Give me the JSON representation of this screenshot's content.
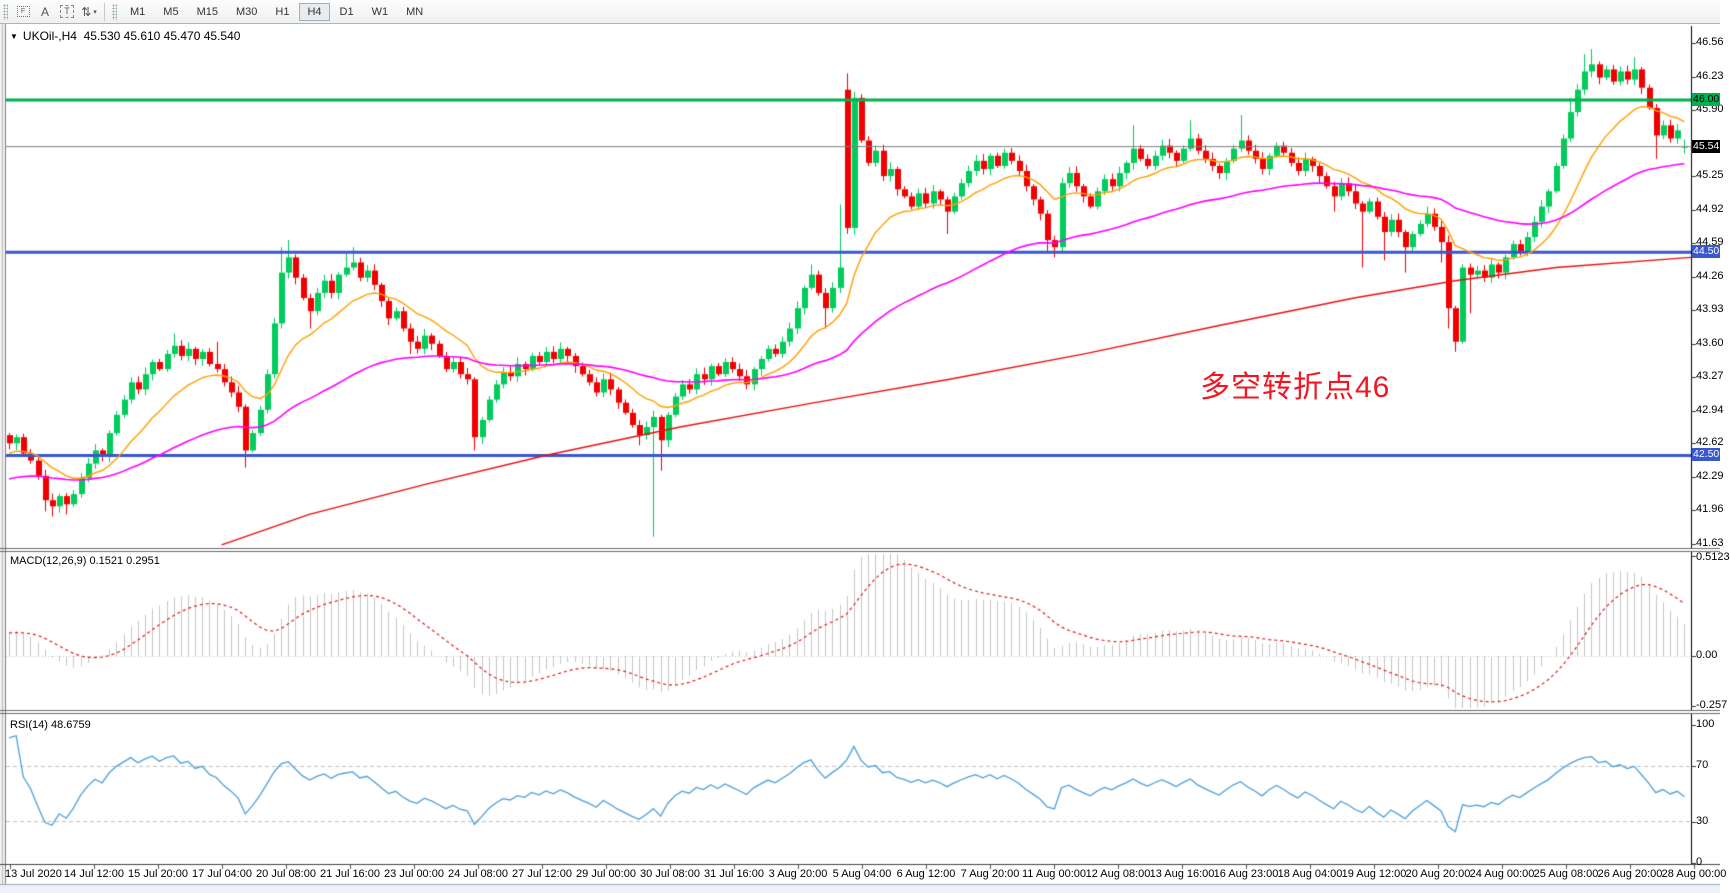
{
  "toolbar": {
    "icons": [
      {
        "name": "chart-foreground-icon",
        "glyph": "F",
        "style": "dotted"
      },
      {
        "name": "text-letter-icon",
        "glyph": "A",
        "style": "plain"
      },
      {
        "name": "text-label-icon",
        "glyph": "T",
        "style": "dashed"
      },
      {
        "name": "objects-arrange-icon",
        "glyph": "⇅",
        "style": "caret"
      }
    ],
    "timeframes": [
      {
        "label": "M1",
        "active": false
      },
      {
        "label": "M5",
        "active": false
      },
      {
        "label": "M15",
        "active": false
      },
      {
        "label": "M30",
        "active": false
      },
      {
        "label": "H1",
        "active": false
      },
      {
        "label": "H4",
        "active": true
      },
      {
        "label": "D1",
        "active": false
      },
      {
        "label": "W1",
        "active": false
      },
      {
        "label": "MN",
        "active": false
      }
    ]
  },
  "chart": {
    "symbol": "UKOil-,H4",
    "ohlc": "45.530 45.610 45.470 45.540",
    "dropdown_glyph": "▼",
    "annotation": {
      "text": "多空转折点46",
      "color": "#f01722"
    },
    "price_axis": {
      "labels": [
        46.56,
        46.23,
        45.9,
        45.25,
        44.92,
        44.59,
        44.26,
        43.93,
        43.6,
        43.27,
        42.94,
        42.62,
        42.29,
        41.96,
        41.63
      ]
    },
    "badges": [
      {
        "text": "46.00",
        "price": 46.0,
        "bg": "#00b050",
        "fg": "#000000"
      },
      {
        "text": "45.54",
        "price": 45.54,
        "bg": "#000000",
        "fg": "#ffffff"
      },
      {
        "text": "44.50",
        "price": 44.5,
        "bg": "#3a57ce",
        "fg": "#ffffff"
      },
      {
        "text": "42.50",
        "price": 42.5,
        "bg": "#3a57ce",
        "fg": "#ffffff"
      }
    ],
    "hlines": [
      {
        "price": 46.0,
        "color": "#00b050",
        "width": 3
      },
      {
        "price": 45.54,
        "color": "#808080",
        "width": 1
      },
      {
        "price": 44.5,
        "color": "#3a57ce",
        "width": 3
      },
      {
        "price": 42.5,
        "color": "#3a57ce",
        "width": 3
      }
    ],
    "candles": {
      "up_color": "#00cc5c",
      "down_color": "#f20000",
      "closes": [
        42.62,
        42.68,
        42.52,
        42.45,
        42.3,
        42.06,
        42.0,
        42.1,
        42.02,
        42.12,
        42.28,
        42.42,
        42.55,
        42.5,
        42.72,
        42.9,
        43.05,
        43.22,
        43.15,
        43.3,
        43.42,
        43.35,
        43.5,
        43.58,
        43.48,
        43.55,
        43.45,
        43.52,
        43.4,
        43.35,
        43.22,
        43.12,
        42.98,
        42.55,
        42.72,
        42.95,
        43.3,
        43.8,
        44.3,
        44.45,
        44.25,
        44.05,
        43.92,
        44.1,
        44.22,
        44.1,
        44.28,
        44.35,
        44.4,
        44.25,
        44.32,
        44.18,
        44.02,
        43.85,
        43.92,
        43.75,
        43.62,
        43.55,
        43.68,
        43.6,
        43.48,
        43.35,
        43.42,
        43.3,
        43.25,
        42.68,
        42.85,
        43.05,
        43.2,
        43.32,
        43.28,
        43.4,
        43.35,
        43.48,
        43.42,
        43.52,
        43.45,
        43.55,
        43.48,
        43.38,
        43.3,
        43.22,
        43.12,
        43.25,
        43.15,
        43.02,
        42.92,
        42.8,
        42.7,
        42.78,
        42.88,
        42.65,
        42.9,
        43.08,
        43.2,
        43.15,
        43.3,
        43.25,
        43.38,
        43.3,
        43.42,
        43.35,
        43.28,
        43.2,
        43.35,
        43.45,
        43.55,
        43.5,
        43.62,
        43.75,
        43.95,
        44.15,
        44.28,
        44.1,
        43.95,
        44.15,
        44.35,
        44.74,
        46.02,
        45.6,
        45.38,
        45.5,
        45.25,
        45.32,
        45.12,
        45.05,
        44.95,
        45.08,
        44.98,
        45.1,
        45.02,
        44.9,
        45.05,
        45.18,
        45.3,
        45.4,
        45.32,
        45.45,
        45.35,
        45.48,
        45.4,
        45.3,
        45.15,
        45.02,
        44.88,
        44.62,
        44.55,
        45.18,
        45.28,
        45.15,
        45.05,
        44.95,
        45.1,
        45.22,
        45.15,
        45.28,
        45.38,
        45.52,
        45.42,
        45.35,
        45.45,
        45.55,
        45.48,
        45.4,
        45.52,
        45.62,
        45.5,
        45.42,
        45.35,
        45.28,
        45.4,
        45.52,
        45.6,
        45.5,
        45.42,
        45.32,
        45.45,
        45.55,
        45.48,
        45.38,
        45.3,
        45.42,
        45.35,
        45.25,
        45.15,
        45.05,
        45.18,
        45.1,
        44.98,
        44.9,
        45.0,
        44.85,
        44.7,
        44.82,
        44.7,
        44.55,
        44.68,
        44.78,
        44.88,
        44.75,
        44.6,
        43.95,
        43.62,
        44.35,
        44.28,
        44.32,
        44.25,
        44.38,
        44.3,
        44.45,
        44.58,
        44.5,
        44.65,
        44.8,
        44.95,
        45.1,
        45.35,
        45.62,
        45.88,
        46.1,
        46.28,
        46.35,
        46.22,
        46.3,
        46.18,
        46.28,
        46.2,
        46.3,
        46.12,
        45.92,
        45.65,
        45.75,
        45.62,
        45.7,
        45.54
      ],
      "open_overrides": {
        "117": 46.1,
        "234": 45.53
      },
      "wick_high_overrides": {
        "23": 43.7,
        "29": 43.62,
        "38": 44.55,
        "39": 44.62,
        "47": 44.5,
        "48": 44.55,
        "112": 44.38,
        "116": 44.97,
        "117": 46.26,
        "118": 46.08,
        "157": 45.75,
        "165": 45.8,
        "172": 45.85,
        "198": 44.95,
        "218": 46.02,
        "220": 46.45,
        "221": 46.5,
        "227": 46.42,
        "234": 45.61
      },
      "wick_low_overrides": {
        "5": 41.95,
        "6": 41.9,
        "8": 41.92,
        "33": 42.38,
        "42": 43.75,
        "56": 43.5,
        "65": 42.55,
        "88": 42.6,
        "90": 41.7,
        "91": 42.35,
        "114": 43.75,
        "131": 44.68,
        "145": 44.5,
        "146": 44.45,
        "185": 44.9,
        "189": 44.35,
        "192": 44.42,
        "195": 44.3,
        "200": 44.4,
        "201": 43.75,
        "202": 43.52,
        "204": 43.9,
        "230": 45.42,
        "234": 45.47
      }
    },
    "moving_averages": {
      "fast": {
        "period": 14,
        "color": "#ffa000"
      },
      "mid": {
        "period": 55,
        "color": "#ff00ff"
      },
      "slow": {
        "color": "#e81010",
        "anchors": [
          [
            0.128,
            41.62
          ],
          [
            0.18,
            41.92
          ],
          [
            0.25,
            42.22
          ],
          [
            0.32,
            42.5
          ],
          [
            0.4,
            42.78
          ],
          [
            0.48,
            43.02
          ],
          [
            0.56,
            43.25
          ],
          [
            0.64,
            43.5
          ],
          [
            0.72,
            43.78
          ],
          [
            0.8,
            44.05
          ],
          [
            0.86,
            44.22
          ],
          [
            0.92,
            44.35
          ],
          [
            1.0,
            44.45
          ]
        ]
      }
    }
  },
  "macd": {
    "label": "MACD(12,26,9) 0.1521 0.2951",
    "fast": 12,
    "slow": 26,
    "signal": 9,
    "axis": [
      {
        "text": "0.5123",
        "value": 0.5123
      },
      {
        "text": "0.00",
        "value": 0
      },
      {
        "text": "-0.257",
        "value": -0.257
      }
    ],
    "histogram_color": "#c6c6c6",
    "signal_color": "#e02020"
  },
  "rsi": {
    "label": "RSI(14) 48.6759",
    "period": 14,
    "axis": [
      {
        "text": "100",
        "value": 100
      },
      {
        "text": "70",
        "value": 70
      },
      {
        "text": "30",
        "value": 30
      },
      {
        "text": "0",
        "value": 0
      }
    ],
    "levels": [
      70,
      30
    ],
    "line_color": "#4da0dc",
    "level_color": "#c0c0c0"
  },
  "time_axis": {
    "labels": [
      "13 Jul 2020",
      "14 Jul 12:00",
      "15 Jul 20:00",
      "17 Jul 04:00",
      "20 Jul 08:00",
      "21 Jul 16:00",
      "23 Jul 00:00",
      "24 Jul 08:00",
      "27 Jul 12:00",
      "29 Jul 00:00",
      "30 Jul 08:00",
      "31 Jul 16:00",
      "3 Aug 20:00",
      "5 Aug 04:00",
      "6 Aug 12:00",
      "7 Aug 20:00",
      "11 Aug 00:00",
      "12 Aug 08:00",
      "13 Aug 16:00",
      "16 Aug 23:00",
      "18 Aug 04:00",
      "19 Aug 12:00",
      "20 Aug 20:00",
      "24 Aug 00:00",
      "25 Aug 08:00",
      "26 Aug 20:00",
      "28 Aug 00:00"
    ]
  }
}
